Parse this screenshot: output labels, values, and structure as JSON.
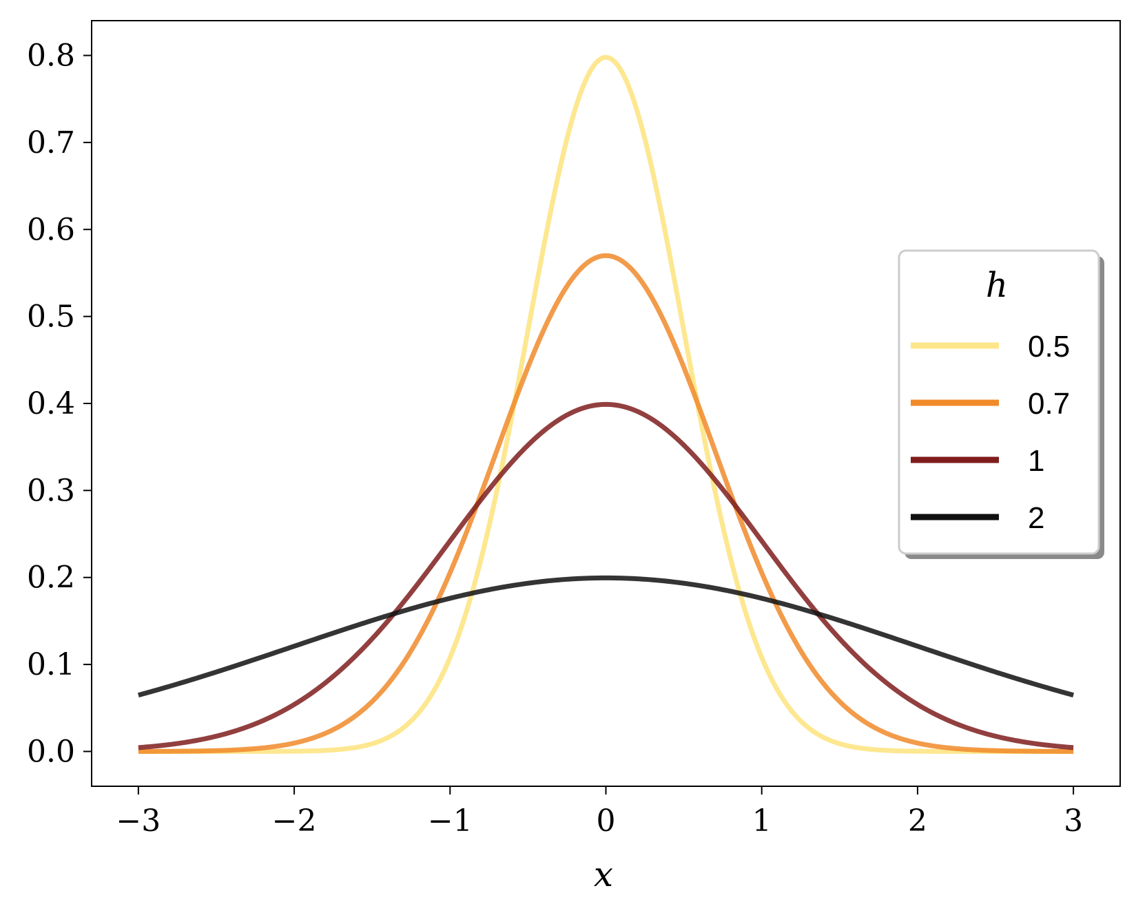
{
  "chart_data": {
    "type": "line",
    "xlabel": "x",
    "ylabel": "",
    "title": "",
    "xlim": [
      -3.3,
      3.3
    ],
    "ylim": [
      -0.04,
      0.84
    ],
    "xticks": [
      -3,
      -2,
      -1,
      0,
      1,
      2,
      3
    ],
    "xtick_labels": [
      "−3",
      "−2",
      "−1",
      "0",
      "1",
      "2",
      "3"
    ],
    "yticks": [
      0.0,
      0.1,
      0.2,
      0.3,
      0.4,
      0.5,
      0.6,
      0.7,
      0.8
    ],
    "ytick_labels": [
      "0.0",
      "0.1",
      "0.2",
      "0.3",
      "0.4",
      "0.5",
      "0.6",
      "0.7",
      "0.8"
    ],
    "grid": false,
    "legend": {
      "title": "h",
      "placement": "center-right",
      "shadow": true
    },
    "x_domain": [
      -3,
      3
    ],
    "series": [
      {
        "name": "0.5",
        "h": 0.5,
        "color": "#fde68a",
        "peak": 0.798,
        "x": [
          -3,
          -2,
          -1.5,
          -1,
          -0.5,
          0,
          0.5,
          1,
          1.5,
          2,
          3
        ],
        "y": [
          0.0,
          0.0003,
          0.0089,
          0.108,
          0.484,
          0.798,
          0.484,
          0.108,
          0.0089,
          0.0003,
          0.0
        ]
      },
      {
        "name": "0.7",
        "h": 0.7,
        "color": "#f08a2a",
        "peak": 0.57,
        "x": [
          -3,
          -2,
          -1.5,
          -1,
          -0.5,
          0,
          0.5,
          1,
          1.5,
          2,
          3
        ],
        "y": [
          0.0001,
          0.0096,
          0.058,
          0.204,
          0.442,
          0.57,
          0.442,
          0.204,
          0.058,
          0.0096,
          0.0001
        ]
      },
      {
        "name": "1",
        "h": 1,
        "color": "#7f1d1d",
        "peak": 0.399,
        "x": [
          -3,
          -2,
          -1.5,
          -1,
          -0.5,
          0,
          0.5,
          1,
          1.5,
          2,
          3
        ],
        "y": [
          0.0044,
          0.054,
          0.13,
          0.242,
          0.352,
          0.399,
          0.352,
          0.242,
          0.13,
          0.054,
          0.0044
        ]
      },
      {
        "name": "2",
        "h": 2,
        "color": "#111111",
        "peak": 0.199,
        "x": [
          -3,
          -2,
          -1.5,
          -1,
          -0.5,
          0,
          0.5,
          1,
          1.5,
          2,
          3
        ],
        "y": [
          0.065,
          0.121,
          0.151,
          0.176,
          0.193,
          0.199,
          0.193,
          0.176,
          0.151,
          0.121,
          0.065
        ]
      }
    ]
  }
}
